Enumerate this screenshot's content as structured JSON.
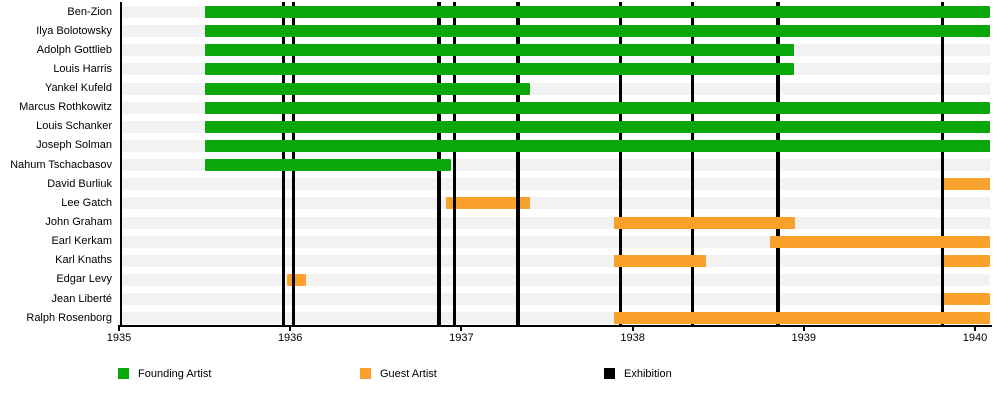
{
  "chart_data": {
    "type": "gantt-timeline",
    "title": "",
    "x_axis": {
      "start": 1935,
      "end": 1940.09,
      "ticks": [
        1935,
        1936,
        1937,
        1938,
        1939,
        1940
      ],
      "tick_labels": [
        "1935",
        "1936",
        "1937",
        "1938",
        "1939",
        "1940"
      ]
    },
    "rows": [
      {
        "label": "Ben-Zion",
        "role": "founding",
        "bars": [
          {
            "start": 1935.5,
            "end": 1940.09
          }
        ]
      },
      {
        "label": "Ilya Bolotowsky",
        "role": "founding",
        "bars": [
          {
            "start": 1935.5,
            "end": 1940.09
          }
        ]
      },
      {
        "label": "Adolph Gottlieb",
        "role": "founding",
        "bars": [
          {
            "start": 1935.5,
            "end": 1938.94
          }
        ]
      },
      {
        "label": "Louis Harris",
        "role": "founding",
        "bars": [
          {
            "start": 1935.5,
            "end": 1938.94
          }
        ]
      },
      {
        "label": "Yankel Kufeld",
        "role": "founding",
        "bars": [
          {
            "start": 1935.5,
            "end": 1937.4
          }
        ]
      },
      {
        "label": "Marcus Rothkowitz",
        "role": "founding",
        "bars": [
          {
            "start": 1935.5,
            "end": 1940.09
          }
        ]
      },
      {
        "label": "Louis Schanker",
        "role": "founding",
        "bars": [
          {
            "start": 1935.5,
            "end": 1940.09
          }
        ]
      },
      {
        "label": "Joseph Solman",
        "role": "founding",
        "bars": [
          {
            "start": 1935.5,
            "end": 1940.09
          }
        ]
      },
      {
        "label": "Nahum Tschacbasov",
        "role": "founding",
        "bars": [
          {
            "start": 1935.5,
            "end": 1936.94
          }
        ]
      },
      {
        "label": "David Burliuk",
        "role": "guest",
        "bars": [
          {
            "start": 1939.82,
            "end": 1940.09
          }
        ]
      },
      {
        "label": "Lee Gatch",
        "role": "guest",
        "bars": [
          {
            "start": 1936.91,
            "end": 1937.4,
            "behind": true
          }
        ]
      },
      {
        "label": "John Graham",
        "role": "guest",
        "bars": [
          {
            "start": 1937.89,
            "end": 1938.95
          }
        ]
      },
      {
        "label": "Earl Kerkam",
        "role": "guest",
        "bars": [
          {
            "start": 1938.8,
            "end": 1940.09
          }
        ]
      },
      {
        "label": "Karl Knaths",
        "role": "guest",
        "bars": [
          {
            "start": 1937.89,
            "end": 1938.43
          },
          {
            "start": 1939.82,
            "end": 1940.09
          }
        ]
      },
      {
        "label": "Edgar Levy",
        "role": "guest",
        "bars": [
          {
            "start": 1935.98,
            "end": 1936.09,
            "behind": true
          }
        ]
      },
      {
        "label": "Jean Liberté",
        "role": "guest",
        "bars": [
          {
            "start": 1939.82,
            "end": 1940.09
          }
        ]
      },
      {
        "label": "Ralph Rosenborg",
        "role": "guest",
        "bars": [
          {
            "start": 1937.89,
            "end": 1940.09
          }
        ]
      }
    ],
    "exhibitions": [
      1935.96,
      1936.02,
      1936.87,
      1936.96,
      1937.33,
      1937.93,
      1938.35,
      1938.85,
      1939.81
    ],
    "colors": {
      "founding": "#0AA70A",
      "guest": "#F9A12B",
      "exhibition": "#000000",
      "row_band": "#F2F2F2"
    },
    "legend": [
      {
        "label": "Founding Artist",
        "role": "founding"
      },
      {
        "label": "Guest Artist",
        "role": "guest"
      },
      {
        "label": "Exhibition",
        "role": "exhibition"
      }
    ]
  }
}
